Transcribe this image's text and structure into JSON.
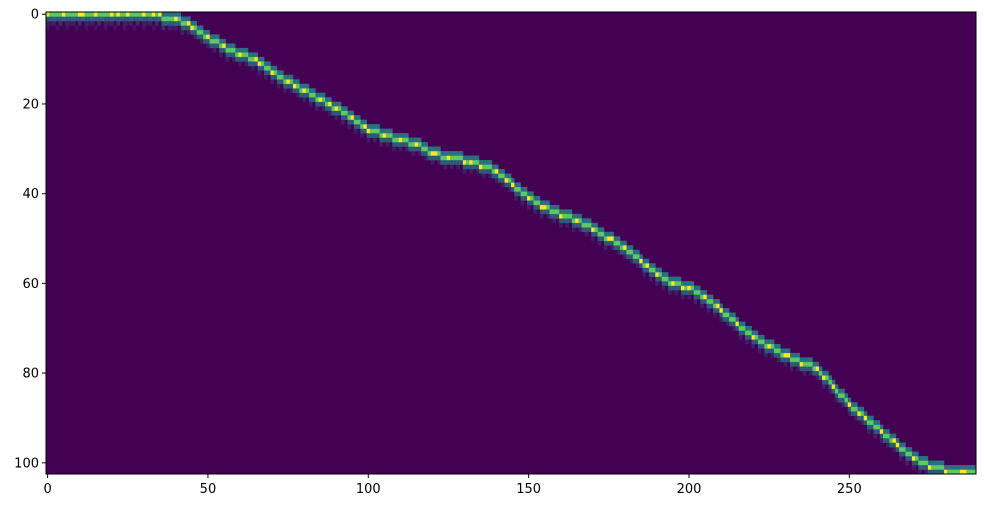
{
  "chart_data": {
    "type": "heatmap",
    "title": "",
    "xlabel": "",
    "ylabel": "",
    "x_range": [
      -0.5,
      289.5
    ],
    "y_range": [
      102.5,
      -0.5
    ],
    "y_inverted": true,
    "x_ticks": [
      0,
      50,
      100,
      150,
      200,
      250
    ],
    "y_ticks": [
      0,
      20,
      40,
      60,
      80,
      100
    ],
    "colormap": "viridis",
    "colors": {
      "background": "#440154",
      "low": "#3b528b",
      "mid": "#21918c",
      "high": "#5ec962",
      "peak": "#fde725"
    },
    "alignment_path": [
      {
        "x": 0,
        "y": 0
      },
      {
        "x": 20,
        "y": 0
      },
      {
        "x": 36,
        "y": 0.5
      },
      {
        "x": 40,
        "y": 1
      },
      {
        "x": 44,
        "y": 2
      },
      {
        "x": 48,
        "y": 4
      },
      {
        "x": 52,
        "y": 6
      },
      {
        "x": 56,
        "y": 7.5
      },
      {
        "x": 60,
        "y": 9
      },
      {
        "x": 65,
        "y": 10
      },
      {
        "x": 70,
        "y": 13
      },
      {
        "x": 75,
        "y": 15
      },
      {
        "x": 80,
        "y": 17
      },
      {
        "x": 85,
        "y": 19
      },
      {
        "x": 90,
        "y": 21
      },
      {
        "x": 95,
        "y": 23
      },
      {
        "x": 100,
        "y": 25.5
      },
      {
        "x": 105,
        "y": 27
      },
      {
        "x": 110,
        "y": 28
      },
      {
        "x": 115,
        "y": 29
      },
      {
        "x": 120,
        "y": 31
      },
      {
        "x": 125,
        "y": 32
      },
      {
        "x": 130,
        "y": 32.5
      },
      {
        "x": 135,
        "y": 33.5
      },
      {
        "x": 140,
        "y": 35
      },
      {
        "x": 145,
        "y": 38
      },
      {
        "x": 150,
        "y": 41
      },
      {
        "x": 155,
        "y": 43
      },
      {
        "x": 160,
        "y": 44.5
      },
      {
        "x": 165,
        "y": 46
      },
      {
        "x": 170,
        "y": 47.5
      },
      {
        "x": 175,
        "y": 50
      },
      {
        "x": 180,
        "y": 52
      },
      {
        "x": 185,
        "y": 55
      },
      {
        "x": 190,
        "y": 57.5
      },
      {
        "x": 195,
        "y": 60
      },
      {
        "x": 200,
        "y": 61
      },
      {
        "x": 205,
        "y": 63
      },
      {
        "x": 210,
        "y": 66
      },
      {
        "x": 215,
        "y": 69
      },
      {
        "x": 220,
        "y": 72
      },
      {
        "x": 225,
        "y": 74
      },
      {
        "x": 230,
        "y": 76
      },
      {
        "x": 235,
        "y": 77.5
      },
      {
        "x": 240,
        "y": 79
      },
      {
        "x": 245,
        "y": 83
      },
      {
        "x": 250,
        "y": 87
      },
      {
        "x": 255,
        "y": 90
      },
      {
        "x": 260,
        "y": 93
      },
      {
        "x": 265,
        "y": 96
      },
      {
        "x": 270,
        "y": 99
      },
      {
        "x": 275,
        "y": 100.5
      },
      {
        "x": 280,
        "y": 101.5
      },
      {
        "x": 289,
        "y": 102
      }
    ],
    "grid": false,
    "legend": "none"
  }
}
